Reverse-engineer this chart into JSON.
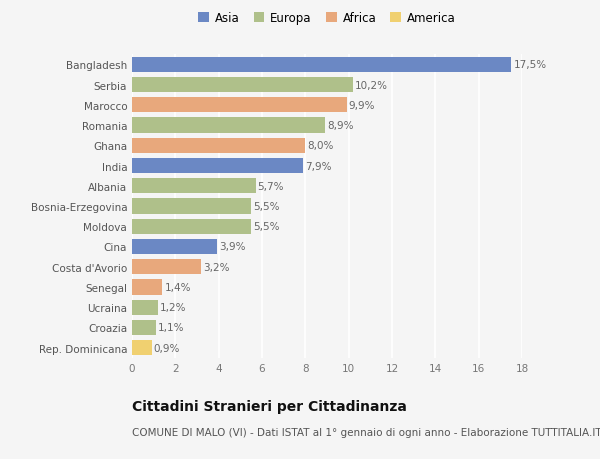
{
  "categories": [
    "Bangladesh",
    "Serbia",
    "Marocco",
    "Romania",
    "Ghana",
    "India",
    "Albania",
    "Bosnia-Erzegovina",
    "Moldova",
    "Cina",
    "Costa d'Avorio",
    "Senegal",
    "Ucraina",
    "Croazia",
    "Rep. Dominicana"
  ],
  "values": [
    17.5,
    10.2,
    9.9,
    8.9,
    8.0,
    7.9,
    5.7,
    5.5,
    5.5,
    3.9,
    3.2,
    1.4,
    1.2,
    1.1,
    0.9
  ],
  "labels": [
    "17,5%",
    "10,2%",
    "9,9%",
    "8,9%",
    "8,0%",
    "7,9%",
    "5,7%",
    "5,5%",
    "5,5%",
    "3,9%",
    "3,2%",
    "1,4%",
    "1,2%",
    "1,1%",
    "0,9%"
  ],
  "continents": [
    "Asia",
    "Europa",
    "Africa",
    "Europa",
    "Africa",
    "Asia",
    "Europa",
    "Europa",
    "Europa",
    "Asia",
    "Africa",
    "Africa",
    "Europa",
    "Europa",
    "America"
  ],
  "colors": {
    "Asia": "#6b88c4",
    "Europa": "#afc08a",
    "Africa": "#e8a87c",
    "America": "#f0d070"
  },
  "legend_labels": [
    "Asia",
    "Europa",
    "Africa",
    "America"
  ],
  "legend_colors": [
    "#6b88c4",
    "#afc08a",
    "#e8a87c",
    "#f0d070"
  ],
  "xlim": [
    0,
    18
  ],
  "xticks": [
    0,
    2,
    4,
    6,
    8,
    10,
    12,
    14,
    16,
    18
  ],
  "title": "Cittadini Stranieri per Cittadinanza",
  "subtitle": "COMUNE DI MALO (VI) - Dati ISTAT al 1° gennaio di ogni anno - Elaborazione TUTTITALIA.IT",
  "background_color": "#f5f5f5",
  "bar_height": 0.75,
  "label_fontsize": 7.5,
  "tick_fontsize": 7.5,
  "legend_fontsize": 8.5,
  "title_fontsize": 10,
  "subtitle_fontsize": 7.5
}
